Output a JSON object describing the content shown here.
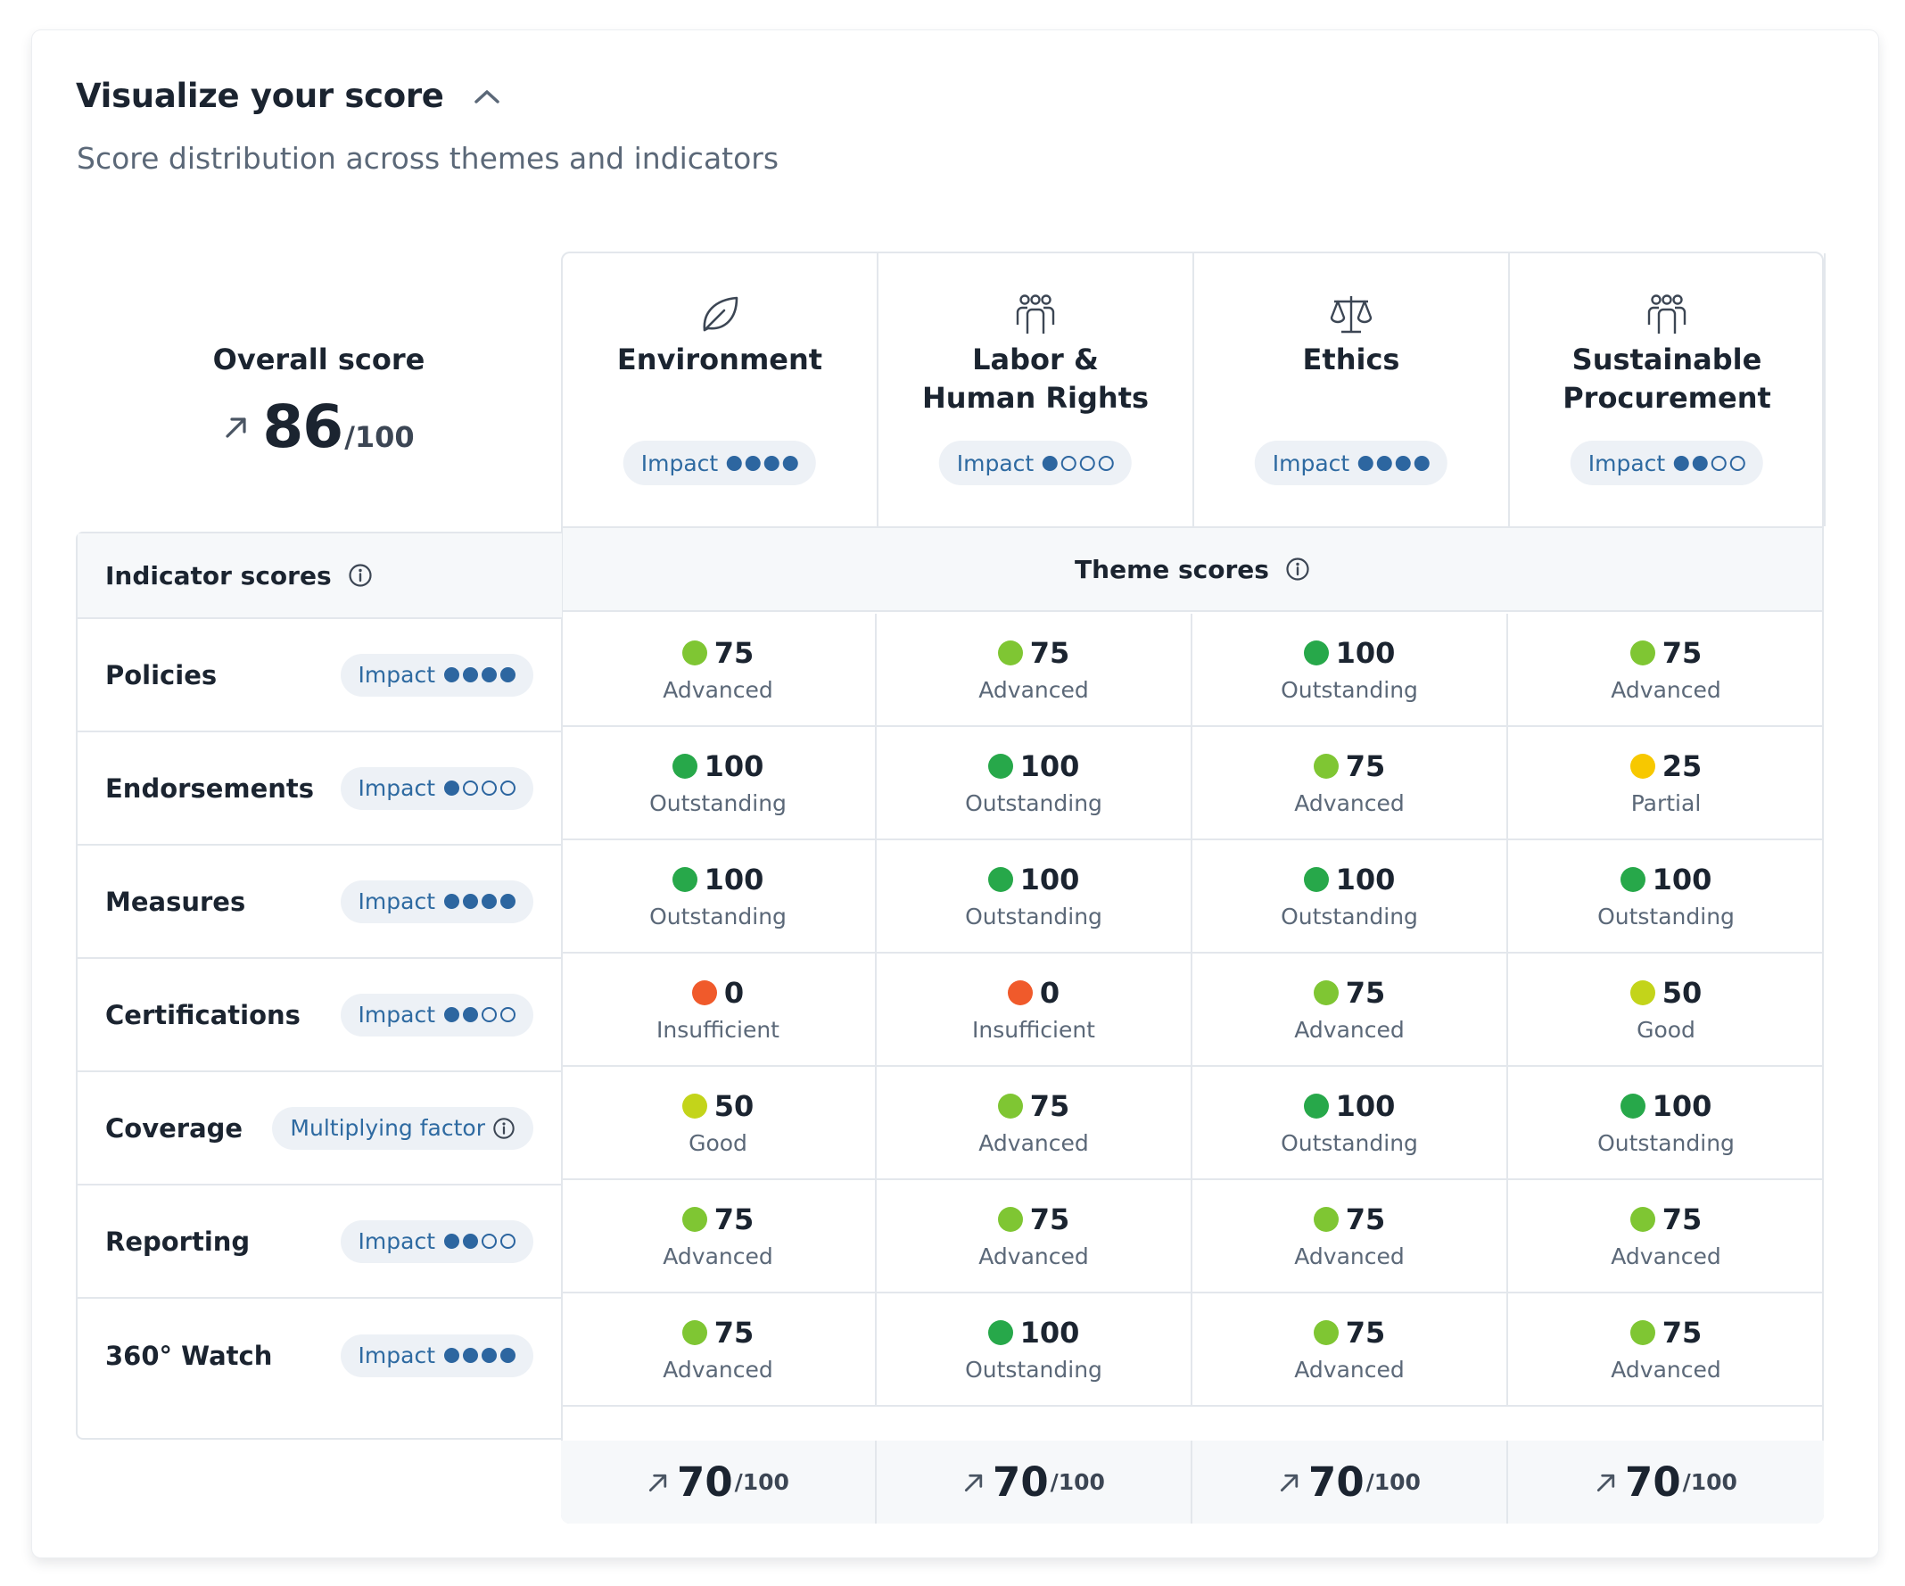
{
  "header": {
    "title": "Visualize your score",
    "subtitle": "Score distribution across themes and indicators"
  },
  "overall": {
    "label": "Overall score",
    "score": "86",
    "out_of": "/100"
  },
  "themes": [
    {
      "name_line1": "Environment",
      "name_line2": "",
      "icon": "leaf-icon",
      "impact_label": "Impact",
      "impact_level": 4
    },
    {
      "name_line1": "Labor &",
      "name_line2": "Human Rights",
      "icon": "people-group-icon",
      "impact_label": "Impact",
      "impact_level": 1
    },
    {
      "name_line1": "Ethics",
      "name_line2": "",
      "icon": "scales-icon",
      "impact_label": "Impact",
      "impact_level": 4
    },
    {
      "name_line1": "Sustainable",
      "name_line2": "Procurement",
      "icon": "people-group-icon",
      "impact_label": "Impact",
      "impact_level": 2
    }
  ],
  "theme_scores_header": "Theme scores",
  "indicator_scores_header": "Indicator scores",
  "indicators": [
    {
      "name": "Policies",
      "tag": "Impact",
      "impact_level": 4
    },
    {
      "name": "Endorsements",
      "tag": "Impact",
      "impact_level": 1
    },
    {
      "name": "Measures",
      "tag": "Impact",
      "impact_level": 4
    },
    {
      "name": "Certifications",
      "tag": "Impact",
      "impact_level": 2
    },
    {
      "name": "Coverage",
      "tag": "Multiplying factor",
      "impact_level": 0
    },
    {
      "name": "Reporting",
      "tag": "Impact",
      "impact_level": 2
    },
    {
      "name": "360° Watch",
      "tag": "Impact",
      "impact_level": 4
    }
  ],
  "scores": [
    [
      {
        "value": "75",
        "label": "Advanced"
      },
      {
        "value": "75",
        "label": "Advanced"
      },
      {
        "value": "100",
        "label": "Outstanding"
      },
      {
        "value": "75",
        "label": "Advanced"
      }
    ],
    [
      {
        "value": "100",
        "label": "Outstanding"
      },
      {
        "value": "100",
        "label": "Outstanding"
      },
      {
        "value": "75",
        "label": "Advanced"
      },
      {
        "value": "25",
        "label": "Partial"
      }
    ],
    [
      {
        "value": "100",
        "label": "Outstanding"
      },
      {
        "value": "100",
        "label": "Outstanding"
      },
      {
        "value": "100",
        "label": "Outstanding"
      },
      {
        "value": "100",
        "label": "Outstanding"
      }
    ],
    [
      {
        "value": "0",
        "label": "Insufficient"
      },
      {
        "value": "0",
        "label": "Insufficient"
      },
      {
        "value": "75",
        "label": "Advanced"
      },
      {
        "value": "50",
        "label": "Good"
      }
    ],
    [
      {
        "value": "50",
        "label": "Good"
      },
      {
        "value": "75",
        "label": "Advanced"
      },
      {
        "value": "100",
        "label": "Outstanding"
      },
      {
        "value": "100",
        "label": "Outstanding"
      }
    ],
    [
      {
        "value": "75",
        "label": "Advanced"
      },
      {
        "value": "75",
        "label": "Advanced"
      },
      {
        "value": "75",
        "label": "Advanced"
      },
      {
        "value": "75",
        "label": "Advanced"
      }
    ],
    [
      {
        "value": "75",
        "label": "Advanced"
      },
      {
        "value": "100",
        "label": "Outstanding"
      },
      {
        "value": "75",
        "label": "Advanced"
      },
      {
        "value": "75",
        "label": "Advanced"
      }
    ]
  ],
  "status_colors": {
    "Outstanding": "#27a84a",
    "Advanced": "#7fc633",
    "Good": "#c3d41a",
    "Partial": "#f7c800",
    "Insufficient": "#f05a2b"
  },
  "totals": [
    {
      "score": "70",
      "out_of": "/100"
    },
    {
      "score": "70",
      "out_of": "/100"
    },
    {
      "score": "70",
      "out_of": "/100"
    },
    {
      "score": "70",
      "out_of": "/100"
    }
  ]
}
